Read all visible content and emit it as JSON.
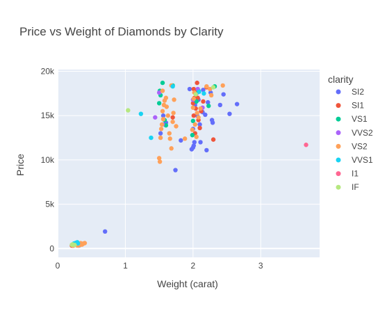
{
  "chart_data": {
    "type": "scatter",
    "title": "Price vs Weight of Diamonds by Clarity",
    "xlabel": "Weight (carat)",
    "ylabel": "Price",
    "xlim": [
      0,
      3.87
    ],
    "ylim": [
      -1000,
      20200
    ],
    "xticks": [
      0,
      1,
      2,
      3
    ],
    "xtick_labels": [
      "0",
      "1",
      "2",
      "3"
    ],
    "yticks": [
      0,
      5000,
      10000,
      15000,
      20000
    ],
    "ytick_labels": [
      "0",
      "5k",
      "10k",
      "15k",
      "20k"
    ],
    "grid": true,
    "plot_background": "#e5ecf6",
    "legend": {
      "title": "clarity",
      "placement": "right"
    },
    "series": [
      {
        "name": "SI2",
        "color": "#636efa",
        "points": [
          [
            0.23,
            326
          ],
          [
            0.31,
            334
          ],
          [
            0.32,
            360
          ],
          [
            0.3,
            410
          ],
          [
            0.7,
            1920
          ],
          [
            1.74,
            8850
          ],
          [
            1.52,
            13000
          ],
          [
            1.56,
            15000
          ],
          [
            1.6,
            14200
          ],
          [
            1.82,
            12200
          ],
          [
            1.98,
            11200
          ],
          [
            2.0,
            11400
          ],
          [
            2.01,
            11600
          ],
          [
            2.02,
            12000
          ],
          [
            2.0,
            13500
          ],
          [
            2.03,
            16200
          ],
          [
            2.05,
            17500
          ],
          [
            2.06,
            15000
          ],
          [
            2.1,
            14000
          ],
          [
            2.15,
            17900
          ],
          [
            2.14,
            15400
          ],
          [
            2.18,
            15100
          ],
          [
            2.22,
            16500
          ],
          [
            2.26,
            17600
          ],
          [
            2.28,
            14500
          ],
          [
            2.4,
            16200
          ],
          [
            2.45,
            17400
          ],
          [
            2.54,
            15200
          ],
          [
            2.65,
            16300
          ],
          [
            2.2,
            11100
          ],
          [
            2.11,
            12000
          ],
          [
            2.29,
            14200
          ],
          [
            1.95,
            18000
          ],
          [
            2.08,
            16800
          ]
        ]
      },
      {
        "name": "SI1",
        "color": "#ef553b",
        "points": [
          [
            0.21,
            326
          ],
          [
            0.31,
            500
          ],
          [
            0.29,
            450
          ],
          [
            1.7,
            14800
          ],
          [
            2.0,
            16400
          ],
          [
            2.01,
            18000
          ],
          [
            2.02,
            17000
          ],
          [
            2.04,
            15800
          ],
          [
            2.06,
            18700
          ],
          [
            2.08,
            14500
          ],
          [
            2.1,
            13600
          ],
          [
            2.12,
            15500
          ],
          [
            2.2,
            18200
          ],
          [
            2.15,
            16600
          ],
          [
            2.03,
            13000
          ],
          [
            2.01,
            15000
          ],
          [
            2.3,
            12300
          ],
          [
            2.05,
            17800
          ],
          [
            2.07,
            17000
          ]
        ]
      },
      {
        "name": "VS1",
        "color": "#00cc96",
        "points": [
          [
            0.24,
            500
          ],
          [
            0.26,
            540
          ],
          [
            1.5,
            16400
          ],
          [
            1.51,
            17800
          ],
          [
            1.55,
            18700
          ],
          [
            1.58,
            14500
          ],
          [
            1.6,
            13900
          ],
          [
            1.7,
            18400
          ],
          [
            1.99,
            12800
          ],
          [
            2.0,
            14400
          ],
          [
            2.05,
            16600
          ],
          [
            2.08,
            17800
          ],
          [
            2.23,
            16100
          ],
          [
            2.32,
            18300
          ],
          [
            1.52,
            17300
          ]
        ]
      },
      {
        "name": "VVS2",
        "color": "#ab63fa",
        "points": [
          [
            0.26,
            480
          ],
          [
            0.27,
            510
          ],
          [
            1.44,
            14800
          ],
          [
            1.5,
            17600
          ],
          [
            1.55,
            14000
          ],
          [
            2.0,
            16800
          ],
          [
            2.07,
            18000
          ],
          [
            2.14,
            15900
          ]
        ]
      },
      {
        "name": "VS2",
        "color": "#ffa15a",
        "points": [
          [
            0.23,
            327
          ],
          [
            0.22,
            380
          ],
          [
            0.29,
            334
          ],
          [
            0.31,
            355
          ],
          [
            0.33,
            400
          ],
          [
            0.35,
            470
          ],
          [
            0.37,
            520
          ],
          [
            0.38,
            560
          ],
          [
            0.4,
            610
          ],
          [
            0.34,
            600
          ],
          [
            0.28,
            580
          ],
          [
            0.3,
            540
          ],
          [
            0.25,
            520
          ],
          [
            0.36,
            440
          ],
          [
            0.32,
            420
          ],
          [
            1.5,
            10200
          ],
          [
            1.51,
            9800
          ],
          [
            1.52,
            12500
          ],
          [
            1.53,
            13500
          ],
          [
            1.54,
            14000
          ],
          [
            1.55,
            15500
          ],
          [
            1.57,
            16200
          ],
          [
            1.58,
            16700
          ],
          [
            1.6,
            17000
          ],
          [
            1.61,
            16000
          ],
          [
            1.63,
            15000
          ],
          [
            1.65,
            13000
          ],
          [
            1.66,
            12400
          ],
          [
            1.68,
            11300
          ],
          [
            1.7,
            14300
          ],
          [
            1.71,
            15300
          ],
          [
            1.72,
            16800
          ],
          [
            1.75,
            13800
          ],
          [
            1.88,
            12400
          ],
          [
            1.99,
            13400
          ],
          [
            2.0,
            15900
          ],
          [
            2.01,
            16900
          ],
          [
            2.02,
            17600
          ],
          [
            2.05,
            12600
          ],
          [
            2.06,
            15300
          ],
          [
            2.08,
            14800
          ],
          [
            2.11,
            15800
          ],
          [
            2.2,
            18300
          ],
          [
            2.25,
            18000
          ],
          [
            2.27,
            17300
          ],
          [
            2.44,
            18400
          ],
          [
            1.68,
            18400
          ],
          [
            1.55,
            17800
          ],
          [
            1.56,
            14600
          ],
          [
            2.03,
            14000
          ]
        ]
      },
      {
        "name": "VVS1",
        "color": "#19d3f3",
        "points": [
          [
            0.24,
            560
          ],
          [
            0.26,
            600
          ],
          [
            0.27,
            640
          ],
          [
            0.29,
            700
          ],
          [
            0.28,
            630
          ],
          [
            0.25,
            480
          ],
          [
            0.3,
            580
          ],
          [
            1.23,
            15200
          ],
          [
            1.38,
            12500
          ],
          [
            1.7,
            18300
          ],
          [
            2.09,
            17700
          ],
          [
            2.16,
            17500
          ]
        ]
      },
      {
        "name": "I1",
        "color": "#ff6692",
        "points": [
          [
            3.67,
            11700
          ]
        ]
      },
      {
        "name": "IF",
        "color": "#b6e880",
        "points": [
          [
            0.21,
            420
          ],
          [
            0.22,
            470
          ],
          [
            0.25,
            400
          ],
          [
            1.04,
            15600
          ],
          [
            2.04,
            17400
          ],
          [
            2.3,
            18200
          ]
        ]
      }
    ]
  }
}
